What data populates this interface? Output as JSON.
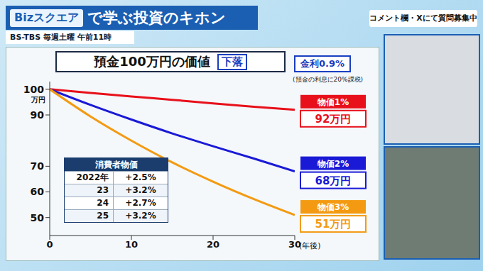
{
  "header": {
    "logo": "Bizスクエア",
    "title": "で学ぶ投資のキホン",
    "subtitle": "BS-TBS 毎週土曜 午前11時",
    "notice": "コメント欄・Xにて質問募集中"
  },
  "chart_data": {
    "type": "line",
    "title": "預金100万円の価値",
    "badge": "下落",
    "annotations": [
      "金利0.9%",
      "(預金の利息に20%課税)"
    ],
    "x": [
      0,
      5,
      10,
      15,
      20,
      25,
      30
    ],
    "series": [
      {
        "name": "物価1%",
        "color": "#e8101a",
        "values": [
          100,
          98.6,
          97.2,
          95.9,
          94.5,
          93.2,
          92
        ],
        "value_labels": [
          null,
          null,
          null,
          null,
          null,
          null,
          "92万円"
        ]
      },
      {
        "name": "物価2%",
        "color": "#1a1ad6",
        "values": [
          100,
          93.9,
          88.2,
          82.8,
          77.8,
          73,
          68
        ],
        "value_labels": [
          null,
          null,
          null,
          null,
          null,
          null,
          "68万円"
        ]
      },
      {
        "name": "物価3%",
        "color": "#f39a12",
        "values": [
          100,
          89.4,
          80,
          71.5,
          64,
          57.2,
          51
        ],
        "value_labels": [
          null,
          null,
          null,
          null,
          null,
          null,
          "51万円"
        ]
      }
    ],
    "xlim": [
      0,
      30
    ],
    "xticks": [
      0,
      10,
      20,
      30
    ],
    "ylim": [
      43,
      103
    ],
    "yticks": [
      50,
      60,
      70,
      90,
      100
    ],
    "x_label": "(年後)",
    "y_label": "万円"
  },
  "table": {
    "title": "消費者物価",
    "rows": [
      [
        "2022年",
        "+2.5%"
      ],
      [
        "23",
        "+3.2%"
      ],
      [
        "24",
        "+2.7%"
      ],
      [
        "25",
        "+3.2%"
      ]
    ]
  }
}
